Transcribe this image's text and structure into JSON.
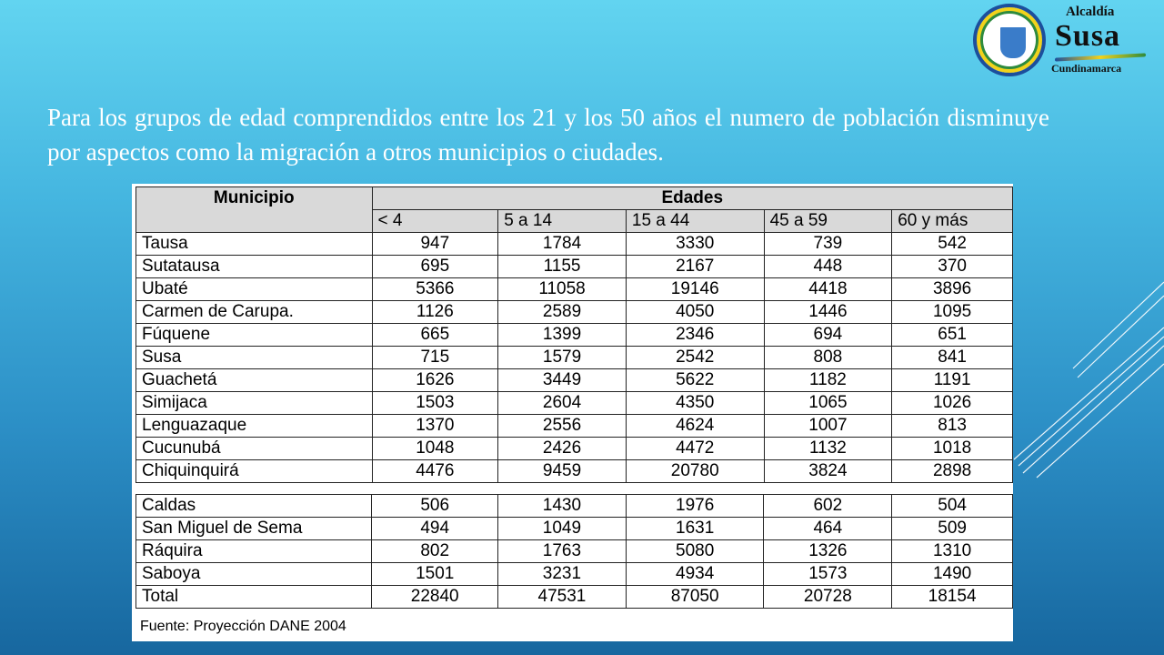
{
  "logo": {
    "line1": "Alcaldía",
    "line2": "Susa",
    "line3": "Cundinamarca"
  },
  "intro": "Para los grupos de edad comprendidos entre los 21 y los 50 años el numero de población disminuye por aspectos como la migración a otros municipios o ciudades.",
  "table": {
    "header_municipio": "Municipio",
    "header_edades": "Edades",
    "age_groups": [
      "< 4",
      "5 a 14",
      "15 a 44",
      "45 a 59",
      "60 y más"
    ],
    "rows_part1": [
      [
        "Tausa",
        "947",
        "1784",
        "3330",
        "739",
        "542"
      ],
      [
        "Sutatausa",
        "695",
        "1155",
        "2167",
        "448",
        "370"
      ],
      [
        "Ubaté",
        "5366",
        "11058",
        "19146",
        "4418",
        "3896"
      ],
      [
        "Carmen de Carupa.",
        "1126",
        "2589",
        "4050",
        "1446",
        "1095"
      ],
      [
        "Fúquene",
        "665",
        "1399",
        "2346",
        "694",
        "651"
      ],
      [
        "Susa",
        "715",
        "1579",
        "2542",
        "808",
        "841"
      ],
      [
        "Guachetá",
        "1626",
        "3449",
        "5622",
        "1182",
        "1191"
      ],
      [
        "Simijaca",
        "1503",
        "2604",
        "4350",
        "1065",
        "1026"
      ],
      [
        "Lenguazaque",
        "1370",
        "2556",
        "4624",
        "1007",
        "813"
      ],
      [
        "Cucunubá",
        "1048",
        "2426",
        "4472",
        "1132",
        "1018"
      ],
      [
        "Chiquinquirá",
        "4476",
        "9459",
        "20780",
        "3824",
        "2898"
      ]
    ],
    "rows_part2": [
      [
        "Caldas",
        "506",
        "1430",
        "1976",
        "602",
        "504"
      ],
      [
        "San Miguel de Sema",
        "494",
        "1049",
        "1631",
        "464",
        "509"
      ],
      [
        "Ráquira",
        "802",
        "1763",
        "5080",
        "1326",
        "1310"
      ],
      [
        "Saboya",
        "1501",
        "3231",
        "4934",
        "1573",
        "1490"
      ],
      [
        "Total",
        "22840",
        "47531",
        "87050",
        "20728",
        "18154"
      ]
    ],
    "source": "Fuente: Proyección  DANE 2004"
  }
}
